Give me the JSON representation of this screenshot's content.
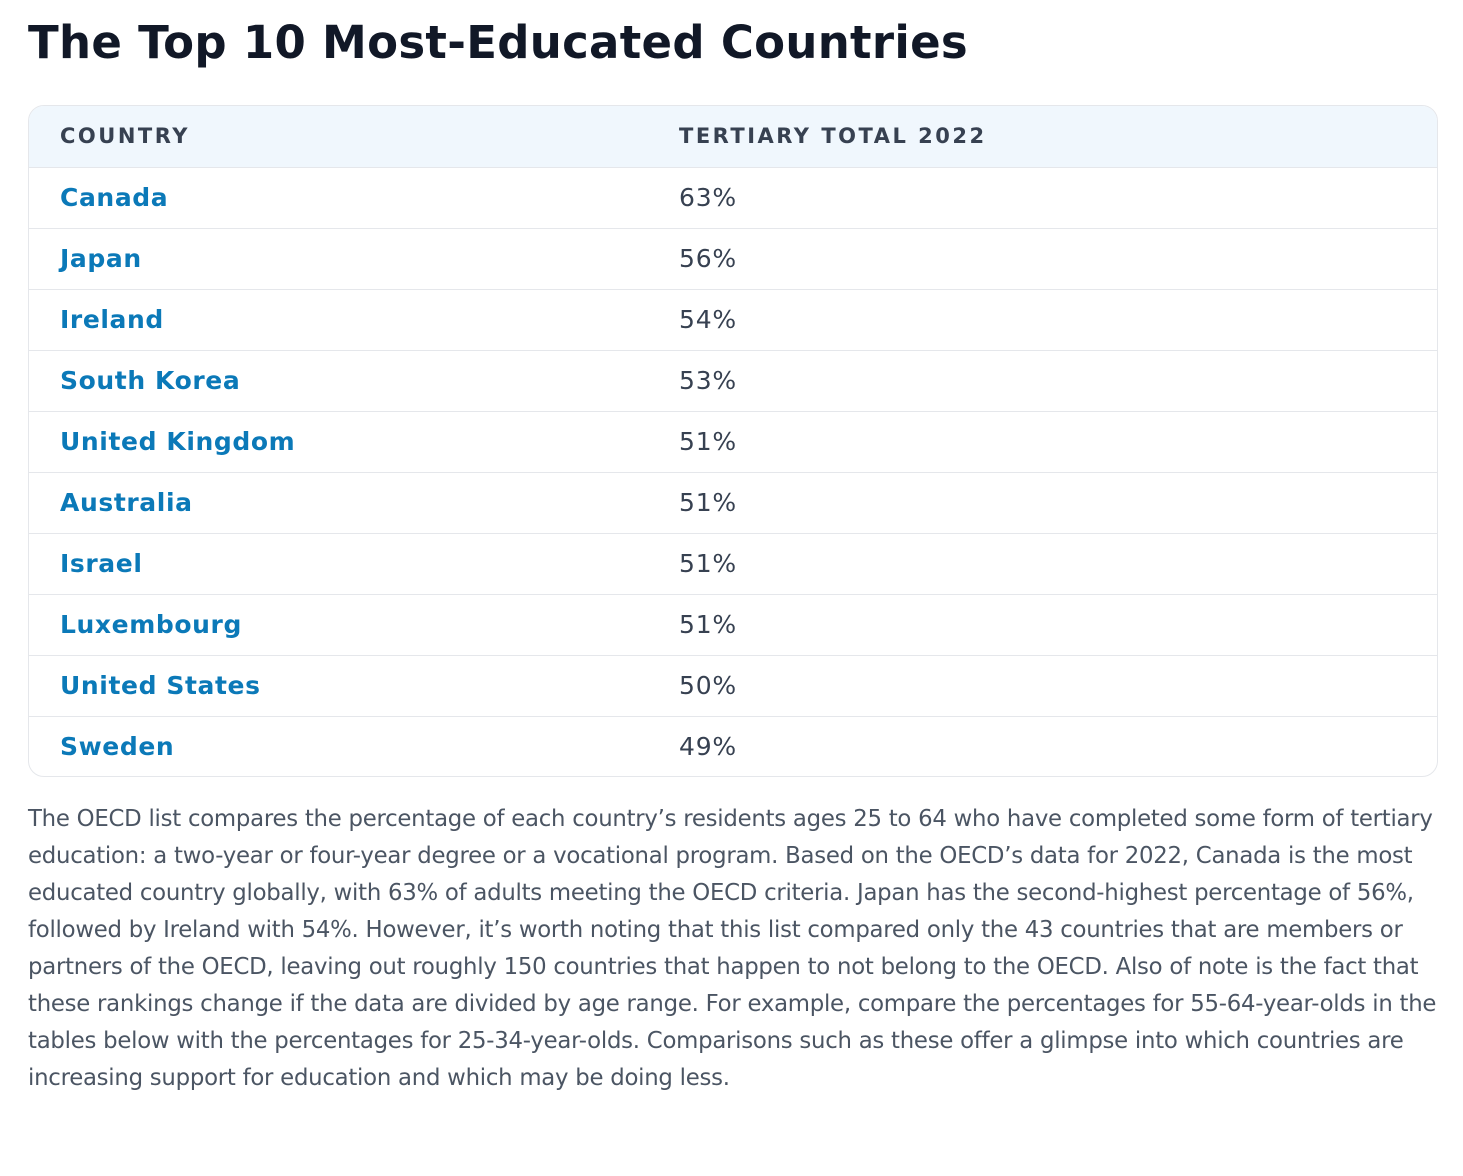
{
  "page": {
    "title": "The Top 10 Most-Educated Countries"
  },
  "table": {
    "headers": {
      "country": "COUNTRY",
      "value": "TERTIARY TOTAL 2022"
    },
    "rows": [
      {
        "country": "Canada",
        "value": "63%"
      },
      {
        "country": "Japan",
        "value": "56%"
      },
      {
        "country": "Ireland",
        "value": "54%"
      },
      {
        "country": "South Korea",
        "value": "53%"
      },
      {
        "country": "United Kingdom",
        "value": "51%"
      },
      {
        "country": "Australia",
        "value": "51%"
      },
      {
        "country": "Israel",
        "value": "51%"
      },
      {
        "country": "Luxembourg",
        "value": "51%"
      },
      {
        "country": "United States",
        "value": "50%"
      },
      {
        "country": "Sweden",
        "value": "49%"
      }
    ]
  },
  "description": "The OECD list compares the percentage of each country’s residents ages 25 to 64 who have completed some form of tertiary education: a two-year or four-year degree or a vocational program. Based on the OECD’s data for 2022, Canada is the most educated country globally, with 63% of adults meeting the OECD criteria. Japan has the second-highest percentage of 56%, followed by Ireland with 54%. However, it’s worth noting that this list compared only the 43 countries that are members or partners of the OECD, leaving out roughly 150 countries that happen to not belong to the OECD. Also of note is the fact that these rankings change if the data are divided by age range. For example, compare the percentages for 55-64-year-olds in the tables below with the percentages for 25-34-year-olds. Comparisons such as these offer a glimpse into which countries are increasing support for education and which may be doing less.",
  "colors": {
    "link": "#0b79b8",
    "header_bg": "#f0f7fd",
    "border": "#e5e7eb",
    "body_text": "#4b5563"
  }
}
